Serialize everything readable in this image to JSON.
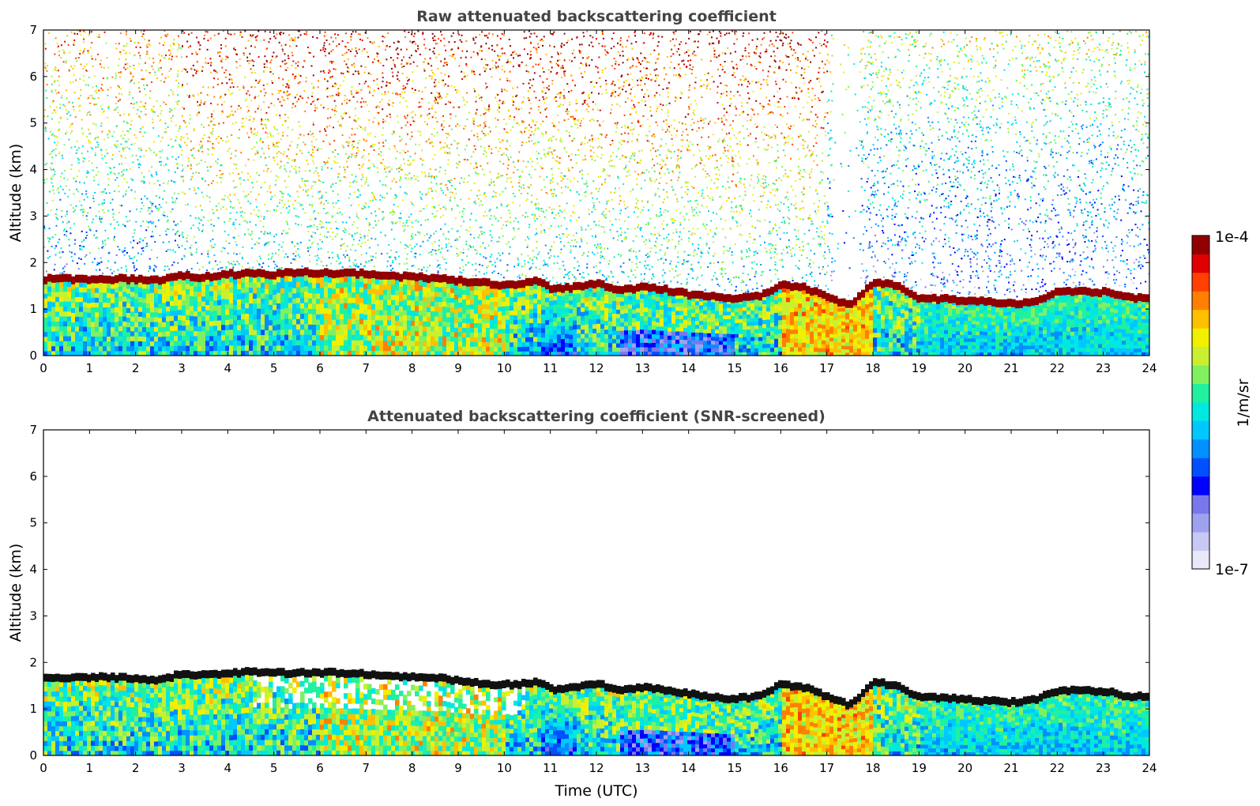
{
  "chart_data": [
    {
      "type": "heatmap",
      "title": "Raw attenuated backscattering coefficient",
      "xlabel": "",
      "ylabel": "Altitude (km)",
      "xlim": [
        0,
        24
      ],
      "ylim": [
        0,
        7
      ],
      "x_ticks": [
        "0",
        "1",
        "2",
        "3",
        "4",
        "5",
        "6",
        "7",
        "8",
        "9",
        "10",
        "11",
        "12",
        "13",
        "14",
        "15",
        "16",
        "17",
        "18",
        "19",
        "20",
        "21",
        "22",
        "23",
        "24"
      ],
      "y_ticks": [
        "0",
        "1",
        "2",
        "3",
        "4",
        "5",
        "6",
        "7"
      ],
      "layer_top_km": [
        [
          0,
          1.68
        ],
        [
          1,
          1.68
        ],
        [
          2,
          1.68
        ],
        [
          2.5,
          1.65
        ],
        [
          3,
          1.75
        ],
        [
          3.5,
          1.72
        ],
        [
          4,
          1.78
        ],
        [
          4.5,
          1.8
        ],
        [
          5,
          1.78
        ],
        [
          5.5,
          1.82
        ],
        [
          6,
          1.82
        ],
        [
          6.5,
          1.8
        ],
        [
          7,
          1.8
        ],
        [
          7.5,
          1.75
        ],
        [
          8,
          1.72
        ],
        [
          8.5,
          1.7
        ],
        [
          9,
          1.65
        ],
        [
          9.5,
          1.6
        ],
        [
          10,
          1.55
        ],
        [
          10.5,
          1.6
        ],
        [
          10.8,
          1.65
        ],
        [
          11,
          1.45
        ],
        [
          11.5,
          1.5
        ],
        [
          12,
          1.58
        ],
        [
          12.5,
          1.45
        ],
        [
          13,
          1.5
        ],
        [
          13.5,
          1.45
        ],
        [
          14,
          1.35
        ],
        [
          14.5,
          1.3
        ],
        [
          15,
          1.25
        ],
        [
          15.5,
          1.3
        ],
        [
          16,
          1.55
        ],
        [
          16.5,
          1.5
        ],
        [
          17,
          1.3
        ],
        [
          17.5,
          1.1
        ],
        [
          18,
          1.6
        ],
        [
          18.5,
          1.55
        ],
        [
          19,
          1.25
        ],
        [
          19.5,
          1.25
        ],
        [
          20,
          1.22
        ],
        [
          20.5,
          1.18
        ],
        [
          21,
          1.15
        ],
        [
          21.5,
          1.2
        ],
        [
          22,
          1.4
        ],
        [
          22.5,
          1.4
        ],
        [
          23,
          1.4
        ],
        [
          23.5,
          1.3
        ],
        [
          24,
          1.25
        ]
      ]
    },
    {
      "type": "heatmap",
      "title": "Attenuated backscattering coefficient (SNR-screened)",
      "xlabel": "Time (UTC)",
      "ylabel": "Altitude (km)",
      "xlim": [
        0,
        24
      ],
      "ylim": [
        0,
        7
      ],
      "x_ticks": [
        "0",
        "1",
        "2",
        "3",
        "4",
        "5",
        "6",
        "7",
        "8",
        "9",
        "10",
        "11",
        "12",
        "13",
        "14",
        "15",
        "16",
        "17",
        "18",
        "19",
        "20",
        "21",
        "22",
        "23",
        "24"
      ],
      "y_ticks": [
        "0",
        "1",
        "2",
        "3",
        "4",
        "5",
        "6",
        "7"
      ],
      "layer_top_km": [
        [
          0,
          1.7
        ],
        [
          1,
          1.72
        ],
        [
          2,
          1.7
        ],
        [
          2.5,
          1.65
        ],
        [
          3,
          1.78
        ],
        [
          3.5,
          1.78
        ],
        [
          4,
          1.8
        ],
        [
          4.5,
          1.83
        ],
        [
          5,
          1.8
        ],
        [
          5.5,
          1.82
        ],
        [
          6,
          1.82
        ],
        [
          6.5,
          1.8
        ],
        [
          7,
          1.78
        ],
        [
          7.5,
          1.75
        ],
        [
          8,
          1.72
        ],
        [
          8.5,
          1.7
        ],
        [
          9,
          1.65
        ],
        [
          9.5,
          1.58
        ],
        [
          10,
          1.55
        ],
        [
          10.5,
          1.58
        ],
        [
          10.8,
          1.62
        ],
        [
          11,
          1.45
        ],
        [
          11.5,
          1.5
        ],
        [
          12,
          1.58
        ],
        [
          12.5,
          1.45
        ],
        [
          13,
          1.5
        ],
        [
          13.5,
          1.45
        ],
        [
          14,
          1.35
        ],
        [
          14.5,
          1.3
        ],
        [
          15,
          1.25
        ],
        [
          15.5,
          1.3
        ],
        [
          16,
          1.55
        ],
        [
          16.5,
          1.5
        ],
        [
          17,
          1.3
        ],
        [
          17.5,
          1.1
        ],
        [
          18,
          1.6
        ],
        [
          18.5,
          1.55
        ],
        [
          19,
          1.28
        ],
        [
          19.5,
          1.28
        ],
        [
          20,
          1.25
        ],
        [
          20.5,
          1.2
        ],
        [
          21,
          1.18
        ],
        [
          21.5,
          1.22
        ],
        [
          22,
          1.42
        ],
        [
          22.5,
          1.42
        ],
        [
          23,
          1.42
        ],
        [
          23.5,
          1.32
        ],
        [
          24,
          1.28
        ]
      ]
    }
  ],
  "colorbar": {
    "label": "1/m/sr",
    "max_label": "1e-4",
    "min_label": "1e-7",
    "colors": [
      "#e8e8f8",
      "#c8c8f4",
      "#a0a0f0",
      "#7878ec",
      "#0000ff",
      "#0050ff",
      "#0090ff",
      "#00c8ff",
      "#00e8e0",
      "#20f0a0",
      "#80f060",
      "#c8f030",
      "#f0f000",
      "#ffc000",
      "#ff8000",
      "#ff4000",
      "#e00000",
      "#900000"
    ]
  }
}
